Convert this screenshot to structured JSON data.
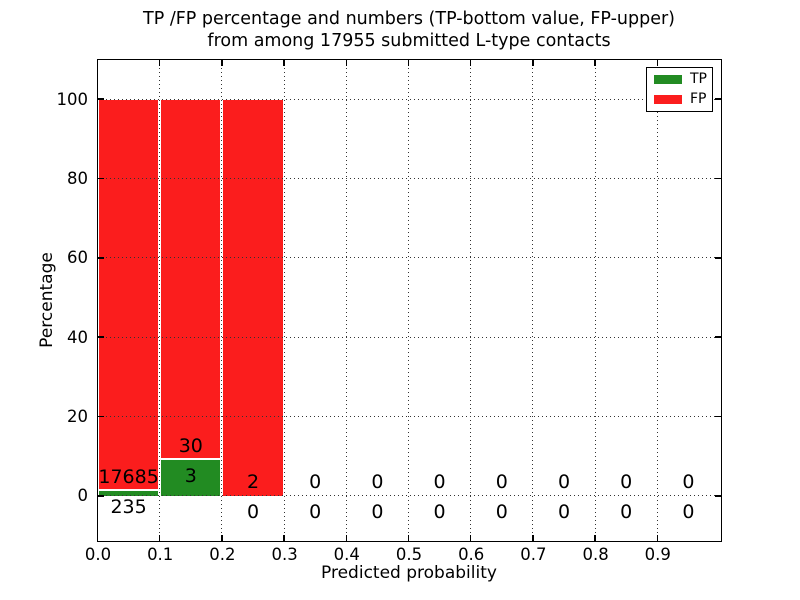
{
  "chart_data": {
    "type": "bar",
    "stacked": true,
    "title_line1": "TP /FP percentage and numbers (TP-bottom value, FP-upper)",
    "title_line2": "from among 17955 submitted L-type contacts",
    "xlabel": "Predicted probability",
    "ylabel": "Percentage",
    "total_submitted": 17955,
    "xlim": [
      0.0,
      1.0
    ],
    "ylim": [
      -11,
      110
    ],
    "x_tick_labels": [
      "0.0",
      "0.1",
      "0.2",
      "0.3",
      "0.4",
      "0.5",
      "0.6",
      "0.7",
      "0.8",
      "0.9"
    ],
    "y_ticks": [
      0,
      20,
      40,
      60,
      80,
      100
    ],
    "grid": "dotted",
    "colors": {
      "tp": "#228b22",
      "fp": "#fb1d1d"
    },
    "legend": {
      "position": "upper right",
      "entries": [
        {
          "label": "TP",
          "color": "#228b22"
        },
        {
          "label": "FP",
          "color": "#fb1d1d"
        }
      ]
    },
    "bins": [
      {
        "range": [
          0.0,
          0.1
        ],
        "tp_count": 235,
        "fp_count": 17685,
        "tp_pct": 1.31,
        "fp_pct": 98.69
      },
      {
        "range": [
          0.1,
          0.2
        ],
        "tp_count": 3,
        "fp_count": 30,
        "tp_pct": 9.09,
        "fp_pct": 90.91
      },
      {
        "range": [
          0.2,
          0.3
        ],
        "tp_count": 0,
        "fp_count": 2,
        "tp_pct": 0,
        "fp_pct": 100
      },
      {
        "range": [
          0.3,
          0.4
        ],
        "tp_count": 0,
        "fp_count": 0,
        "tp_pct": 0,
        "fp_pct": 0
      },
      {
        "range": [
          0.4,
          0.5
        ],
        "tp_count": 0,
        "fp_count": 0,
        "tp_pct": 0,
        "fp_pct": 0
      },
      {
        "range": [
          0.5,
          0.6
        ],
        "tp_count": 0,
        "fp_count": 0,
        "tp_pct": 0,
        "fp_pct": 0
      },
      {
        "range": [
          0.6,
          0.7
        ],
        "tp_count": 0,
        "fp_count": 0,
        "tp_pct": 0,
        "fp_pct": 0
      },
      {
        "range": [
          0.7,
          0.8
        ],
        "tp_count": 0,
        "fp_count": 0,
        "tp_pct": 0,
        "fp_pct": 0
      },
      {
        "range": [
          0.8,
          0.9
        ],
        "tp_count": 0,
        "fp_count": 0,
        "tp_pct": 0,
        "fp_pct": 0
      },
      {
        "range": [
          0.9,
          1.0
        ],
        "tp_count": 0,
        "fp_count": 0,
        "tp_pct": 0,
        "fp_pct": 0
      }
    ]
  }
}
